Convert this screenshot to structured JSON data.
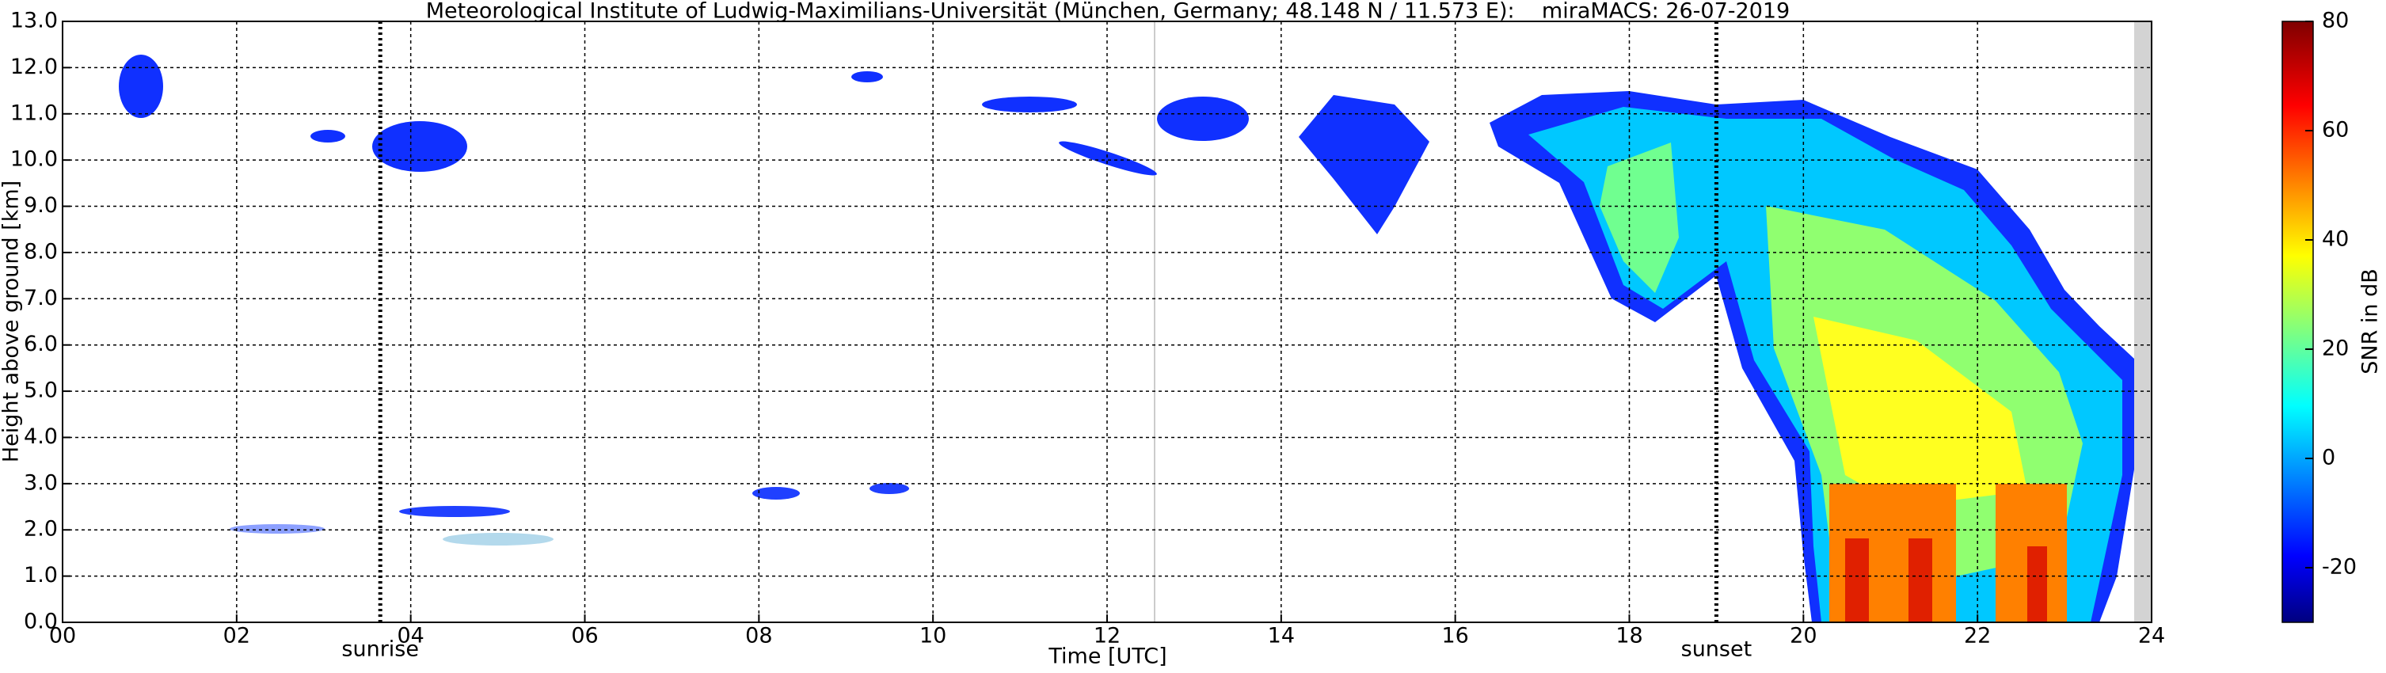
{
  "chart_data": {
    "type": "heatmap",
    "title": "Meteorological Institute of Ludwig-Maximilians-Universität (München, Germany; 48.148 N / 11.573 E):    miraMACS: 26-07-2019",
    "x_label": "Time [UTC]",
    "y_label": "Height above ground [km]",
    "xlim": [
      0,
      24
    ],
    "xticks": [
      {
        "value": 0,
        "label": "00"
      },
      {
        "value": 2,
        "label": "02"
      },
      {
        "value": 4,
        "label": "04"
      },
      {
        "value": 6,
        "label": "06"
      },
      {
        "value": 8,
        "label": "08"
      },
      10,
      12,
      14,
      16,
      18,
      20,
      22,
      24
    ],
    "ylim": [
      0,
      13
    ],
    "yticks": [
      {
        "value": 0,
        "label": "0.0"
      },
      {
        "value": 1,
        "label": "1.0"
      },
      {
        "value": 2,
        "label": "2.0"
      },
      {
        "value": 3,
        "label": "3.0"
      },
      {
        "value": 4,
        "label": "4.0"
      },
      {
        "value": 5,
        "label": "5.0"
      },
      {
        "value": 6,
        "label": "6.0"
      },
      {
        "value": 7,
        "label": "7.0"
      },
      {
        "value": 8,
        "label": "8.0"
      },
      {
        "value": 9,
        "label": "9.0"
      },
      {
        "value": 10,
        "label": "10.0"
      },
      {
        "value": 11,
        "label": "11.0"
      },
      {
        "value": 12,
        "label": "12.0"
      },
      {
        "value": 13,
        "label": "13.0"
      }
    ],
    "grid": true,
    "annotations": [
      {
        "text": "sunrise",
        "x": 3.65
      },
      {
        "text": "sunset",
        "x": 19.0
      }
    ],
    "colorbar": {
      "label": "SNR in dB",
      "colormap": "jet",
      "lim": [
        -30,
        80
      ],
      "ticks": [
        -20,
        0,
        20,
        40,
        60,
        80
      ]
    }
  }
}
